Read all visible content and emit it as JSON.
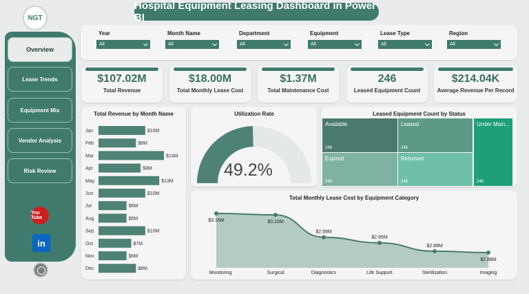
{
  "header": {
    "title": "Hospital Equipment Leasing Dashboard in Power BI",
    "logo_text": "NGT"
  },
  "sidebar": {
    "items": [
      {
        "label": "Overview",
        "active": true
      },
      {
        "label": "Lease Trends",
        "active": false
      },
      {
        "label": "Equipment Mix",
        "active": false
      },
      {
        "label": "Vendor Analysis",
        "active": false
      },
      {
        "label": "Risk Review",
        "active": false
      }
    ],
    "youtube_text": "You Tube",
    "linkedin_text": "in"
  },
  "filters": [
    {
      "label": "Year",
      "value": "All"
    },
    {
      "label": "Month Name",
      "value": "All"
    },
    {
      "label": "Department",
      "value": "All"
    },
    {
      "label": "Equipment",
      "value": "All"
    },
    {
      "label": "Lease Type",
      "value": "All"
    },
    {
      "label": "Region",
      "value": "All"
    }
  ],
  "kpis": [
    {
      "value": "$107.02M",
      "label": "Total Revenue"
    },
    {
      "value": "$18.00M",
      "label": "Total Monthly Lease Cost"
    },
    {
      "value": "$1.37M",
      "label": "Total Maintenance Cost"
    },
    {
      "value": "246",
      "label": "Leased Equipment Count"
    },
    {
      "value": "$214.04K",
      "label": "Average Revenue Per Record"
    }
  ],
  "utilization": {
    "title": "Utilization Rate",
    "value": 49.2,
    "value_label": "49.2%"
  },
  "treemap": {
    "title": "Leased Equipment Count by Status",
    "cells": [
      {
        "label": "Available",
        "count": "246",
        "color": "#4a7a6e"
      },
      {
        "label": "Leased",
        "count": "246",
        "color": "#5d9a86"
      },
      {
        "label": "Under Main...",
        "count": "246",
        "color": "#1f9e7a"
      },
      {
        "label": "Expired",
        "count": "246",
        "color": "#7fb2a3"
      },
      {
        "label": "Returned",
        "count": "246",
        "color": "#6fc0ab"
      }
    ]
  },
  "colors": {
    "accent": "#3f7a6d",
    "bar": "#4e8276",
    "area": "#b4cbc3",
    "line": "#4a7a6e"
  },
  "chart_data": [
    {
      "type": "bar",
      "orientation": "horizontal",
      "title": "Total Revenue by Month Name",
      "categories": [
        "Jan",
        "Feb",
        "Mar",
        "Apr",
        "May",
        "Jun",
        "Jul",
        "Aug",
        "Sep",
        "Oct",
        "Nov",
        "Dec"
      ],
      "values": [
        10,
        8,
        14,
        9,
        13,
        10,
        6,
        6,
        10,
        7,
        6,
        8
      ],
      "data_labels": [
        "$10M",
        "$8M",
        "$14M",
        "$9M",
        "$13M",
        "$10M",
        "$6M",
        "$6M",
        "$10M",
        "$7M",
        "$6M",
        "$8M"
      ],
      "unit": "$M",
      "xlim": [
        0,
        14
      ]
    },
    {
      "type": "area",
      "title": "Total Monthly Lease Cost by Equipment Category",
      "categories": [
        "Monitoring",
        "Surgical",
        "Diagnostics",
        "Life Support",
        "Sterilization",
        "Imaging"
      ],
      "values": [
        3.16,
        3.15,
        2.99,
        2.95,
        2.89,
        2.88
      ],
      "data_labels": [
        "$3.16M",
        "$3.15M",
        "$2.99M",
        "$2.95M",
        "$2.89M",
        "$2.88M"
      ],
      "unit": "$M",
      "ylim": [
        2.86,
        3.17
      ]
    }
  ]
}
